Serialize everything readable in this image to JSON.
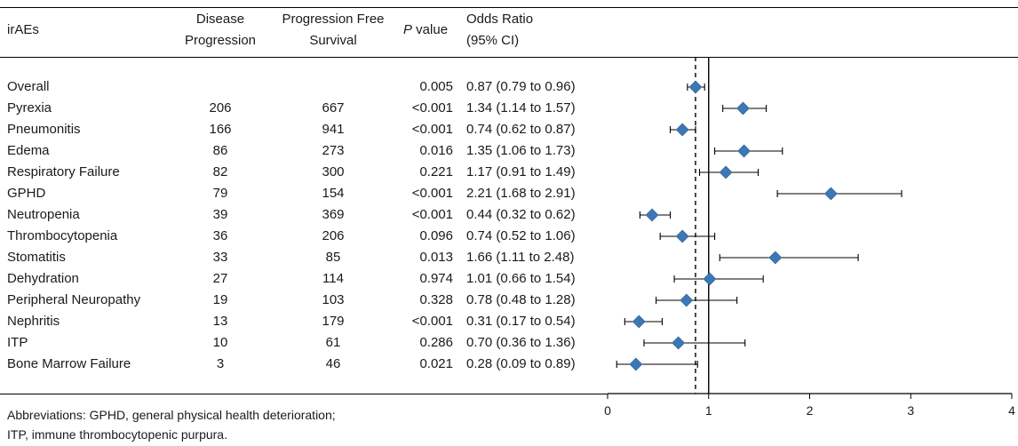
{
  "headers": {
    "col1": "irAEs",
    "col2_line1": "Disease",
    "col2_line2": "Progression",
    "col3_line1": "Progression Free",
    "col3_line2": "Survival",
    "col4_italic": "P",
    "col4_rest": " value",
    "col5_line1": "Odds Ratio",
    "col5_line2": "(95% CI)"
  },
  "footnote": {
    "line1": "Abbreviations: GPHD, general physical health deterioration;",
    "line2": "ITP, immune thrombocytopenic purpura."
  },
  "chart_data": {
    "type": "forest",
    "x_axis": {
      "ticks": [
        0,
        1,
        2,
        3,
        4
      ],
      "xlim": [
        0,
        4
      ],
      "reference_line": 1,
      "dashed_line": 0.87
    },
    "marker_color": "#3d78b5",
    "rows": [
      {
        "name": "Overall",
        "dp": "",
        "pfs": "",
        "p": "0.005",
        "or_text": "0.87 (0.79 to 0.96)",
        "or": 0.87,
        "lo": 0.79,
        "hi": 0.96
      },
      {
        "name": "Pyrexia",
        "dp": "206",
        "pfs": "667",
        "p": "<0.001",
        "or_text": "1.34 (1.14 to 1.57)",
        "or": 1.34,
        "lo": 1.14,
        "hi": 1.57
      },
      {
        "name": "Pneumonitis",
        "dp": "166",
        "pfs": "941",
        "p": "<0.001",
        "or_text": "0.74 (0.62 to 0.87)",
        "or": 0.74,
        "lo": 0.62,
        "hi": 0.87
      },
      {
        "name": "Edema",
        "dp": "86",
        "pfs": "273",
        "p": "0.016",
        "or_text": "1.35 (1.06 to 1.73)",
        "or": 1.35,
        "lo": 1.06,
        "hi": 1.73
      },
      {
        "name": "Respiratory Failure",
        "dp": "82",
        "pfs": "300",
        "p": "0.221",
        "or_text": "1.17 (0.91 to 1.49)",
        "or": 1.17,
        "lo": 0.91,
        "hi": 1.49
      },
      {
        "name": "GPHD",
        "dp": "79",
        "pfs": "154",
        "p": "<0.001",
        "or_text": "2.21 (1.68 to 2.91)",
        "or": 2.21,
        "lo": 1.68,
        "hi": 2.91
      },
      {
        "name": "Neutropenia",
        "dp": "39",
        "pfs": "369",
        "p": "<0.001",
        "or_text": "0.44 (0.32 to 0.62)",
        "or": 0.44,
        "lo": 0.32,
        "hi": 0.62
      },
      {
        "name": "Thrombocytopenia",
        "dp": "36",
        "pfs": "206",
        "p": "0.096",
        "or_text": "0.74 (0.52 to 1.06)",
        "or": 0.74,
        "lo": 0.52,
        "hi": 1.06
      },
      {
        "name": "Stomatitis",
        "dp": "33",
        "pfs": "85",
        "p": "0.013",
        "or_text": "1.66 (1.11 to 2.48)",
        "or": 1.66,
        "lo": 1.11,
        "hi": 2.48
      },
      {
        "name": "Dehydration",
        "dp": "27",
        "pfs": "114",
        "p": "0.974",
        "or_text": "1.01 (0.66 to 1.54)",
        "or": 1.01,
        "lo": 0.66,
        "hi": 1.54
      },
      {
        "name": "Peripheral Neuropathy",
        "dp": "19",
        "pfs": "103",
        "p": "0.328",
        "or_text": "0.78 (0.48 to 1.28)",
        "or": 0.78,
        "lo": 0.48,
        "hi": 1.28
      },
      {
        "name": "Nephritis",
        "dp": "13",
        "pfs": "179",
        "p": "<0.001",
        "or_text": "0.31 (0.17 to 0.54)",
        "or": 0.31,
        "lo": 0.17,
        "hi": 0.54
      },
      {
        "name": "ITP",
        "dp": "10",
        "pfs": "61",
        "p": "0.286",
        "or_text": "0.70 (0.36 to 1.36)",
        "or": 0.7,
        "lo": 0.36,
        "hi": 1.36
      },
      {
        "name": "Bone Marrow Failure",
        "dp": "3",
        "pfs": "46",
        "p": "0.021",
        "or_text": "0.28 (0.09 to 0.89)",
        "or": 0.28,
        "lo": 0.09,
        "hi": 0.89
      }
    ]
  }
}
